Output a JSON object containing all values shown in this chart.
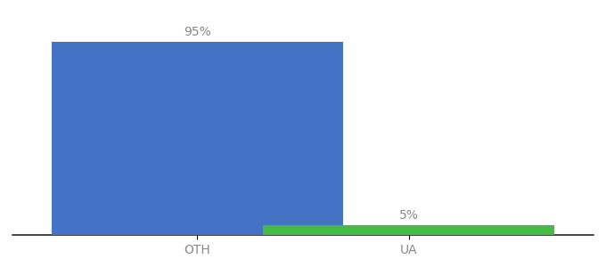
{
  "categories": [
    "OTH",
    "UA"
  ],
  "values": [
    95,
    5
  ],
  "bar_colors": [
    "#4472c4",
    "#44bb44"
  ],
  "ylim": [
    0,
    105
  ],
  "bar_width": 0.55,
  "label_fontsize": 10,
  "tick_fontsize": 10,
  "background_color": "#ffffff",
  "value_labels": [
    "95%",
    "5%"
  ],
  "label_color": "#888888",
  "tick_color": "#888888",
  "spine_color": "#222222",
  "x_positions": [
    0.35,
    0.75
  ]
}
